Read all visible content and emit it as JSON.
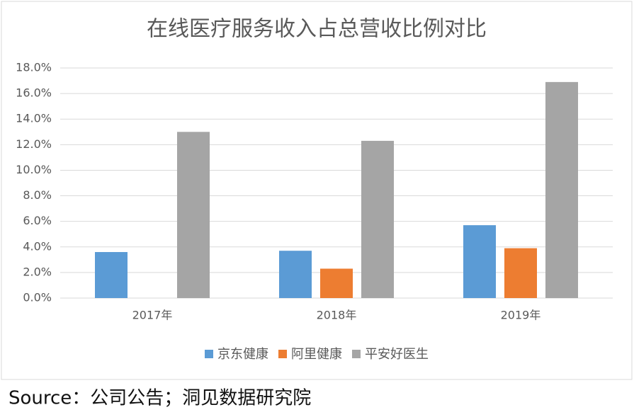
{
  "chart_data": {
    "type": "bar",
    "title": "在线医疗服务收入占总营收比例对比",
    "categories": [
      "2017年",
      "2018年",
      "2019年"
    ],
    "series": [
      {
        "name": "京东健康",
        "color": "#5b9bd5",
        "values": [
          3.6,
          3.7,
          5.7
        ]
      },
      {
        "name": "阿里健康",
        "color": "#ed7d31",
        "values": [
          null,
          2.3,
          3.9
        ]
      },
      {
        "name": "平安好医生",
        "color": "#a5a5a5",
        "values": [
          13.0,
          12.3,
          16.9
        ]
      }
    ],
    "ylim": [
      0,
      18
    ],
    "yticks": [
      {
        "value": 0,
        "label": "0.0%"
      },
      {
        "value": 2,
        "label": "2.0%"
      },
      {
        "value": 4,
        "label": "4.0%"
      },
      {
        "value": 6,
        "label": "6.0%"
      },
      {
        "value": 8,
        "label": "8.0%"
      },
      {
        "value": 10,
        "label": "10.0%"
      },
      {
        "value": 12,
        "label": "12.0%"
      },
      {
        "value": 14,
        "label": "14.0%"
      },
      {
        "value": 16,
        "label": "16.0%"
      },
      {
        "value": 18,
        "label": "18.0%"
      }
    ],
    "grid": true,
    "legend": "bottom",
    "source": "Source：公司公告；洞见数据研究院"
  }
}
